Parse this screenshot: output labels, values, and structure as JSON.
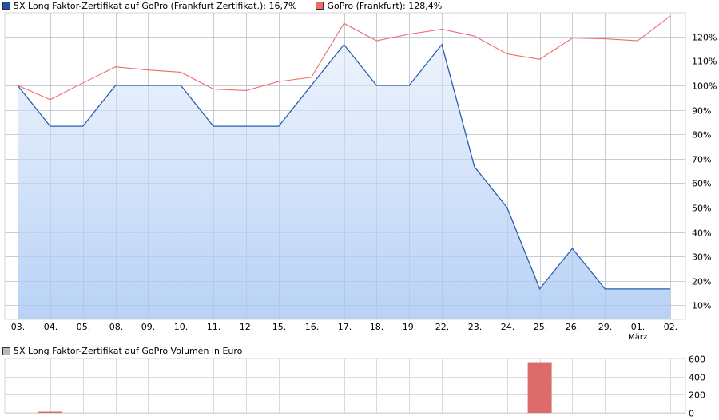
{
  "legend": {
    "series1_label": "5X Long Faktor-Zertifikat auf GoPro  (Frankfurt Zertifikat.): 16,7%",
    "series1_color": "#1f4fb0",
    "series2_label": "GoPro (Frankfurt): 128,4%",
    "series2_color": "#f06a6a"
  },
  "volume_legend": {
    "label": "5X Long Faktor-Zertifikat auf GoPro  Volumen in Euro",
    "color": "#bbbbbb"
  },
  "month_label": "März",
  "chart_data": [
    {
      "type": "line",
      "title": "",
      "x": [
        "03.",
        "04.",
        "05.",
        "08.",
        "09.",
        "10.",
        "11.",
        "12.",
        "15.",
        "16.",
        "17.",
        "18.",
        "19.",
        "22.",
        "23.",
        "24.",
        "25.",
        "26.",
        "29.",
        "01.",
        "02."
      ],
      "series": [
        {
          "name": "5X Long Faktor-Zertifikat auf GoPro  (Frankfurt Zertifikat.)",
          "color": "#2a5db0",
          "fill": "area",
          "values": [
            100,
            83.3,
            83.3,
            100,
            100,
            100,
            83.3,
            83.3,
            83.3,
            100,
            116.7,
            100,
            100,
            116.7,
            66.7,
            50,
            16.7,
            33.3,
            16.7,
            16.7,
            16.7
          ]
        },
        {
          "name": "GoPro (Frankfurt)",
          "color": "#f06a6a",
          "values": [
            100,
            94.2,
            101,
            107.6,
            106.3,
            105.4,
            98.5,
            97.9,
            101.6,
            103.3,
            125.4,
            118.3,
            121,
            123,
            120.2,
            112.9,
            110.7,
            119.4,
            119.1,
            118.3,
            128.4
          ]
        }
      ],
      "yticks": [
        "10%",
        "20%",
        "30%",
        "40%",
        "50%",
        "60%",
        "70%",
        "80%",
        "90%",
        "100%",
        "110%",
        "120%"
      ],
      "ylim": [
        4,
        131
      ],
      "xlabel": "",
      "ylabel": "",
      "grid": true,
      "legend_position": "top"
    },
    {
      "type": "bar",
      "title": "5X Long Faktor-Zertifikat auf GoPro  Volumen in Euro",
      "categories": [
        "03.",
        "04.",
        "05.",
        "08.",
        "09.",
        "10.",
        "11.",
        "12.",
        "15.",
        "16.",
        "17.",
        "18.",
        "19.",
        "22.",
        "23.",
        "24.",
        "25.",
        "26.",
        "29.",
        "01.",
        "02."
      ],
      "values": [
        0,
        5,
        0,
        0,
        0,
        0,
        0,
        0,
        0,
        0,
        0,
        0,
        0,
        0,
        0,
        0,
        560,
        0,
        0,
        0,
        0
      ],
      "color": "#dc6b6b",
      "yticks": [
        "0",
        "200",
        "400",
        "600"
      ],
      "ylim": [
        0,
        600
      ],
      "grid": true
    }
  ]
}
